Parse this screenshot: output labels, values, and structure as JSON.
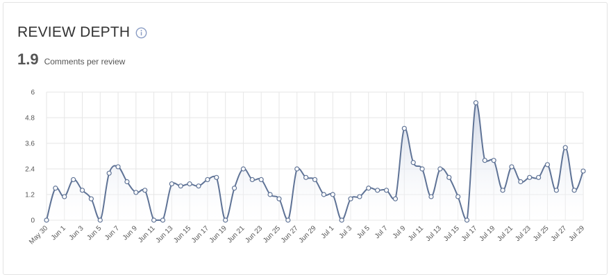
{
  "header": {
    "title": "REVIEW DEPTH",
    "info_icon": "info-circle-icon"
  },
  "metric": {
    "value": "1.9",
    "label": "Comments per review"
  },
  "colors": {
    "line": "#5f7396",
    "fill_top": "#c9d2e4",
    "fill_bottom": "#ffffff",
    "grid": "#e6e6e6",
    "info_icon": "#8a9cc4"
  },
  "chart_data": {
    "type": "area",
    "title": "",
    "xlabel": "",
    "ylabel": "",
    "ylim": [
      0,
      6
    ],
    "yticks": [
      "0",
      "1.2",
      "2.4",
      "3.6",
      "4.8",
      "6"
    ],
    "grid": true,
    "x": [
      "May 30",
      "May 31",
      "Jun 1",
      "Jun 2",
      "Jun 3",
      "Jun 4",
      "Jun 5",
      "Jun 6",
      "Jun 7",
      "Jun 8",
      "Jun 9",
      "Jun 10",
      "Jun 11",
      "Jun 12",
      "Jun 13",
      "Jun 14",
      "Jun 15",
      "Jun 16",
      "Jun 17",
      "Jun 18",
      "Jun 19",
      "Jun 20",
      "Jun 21",
      "Jun 22",
      "Jun 23",
      "Jun 24",
      "Jun 25",
      "Jun 26",
      "Jun 27",
      "Jun 28",
      "Jun 29",
      "Jun 30",
      "Jul 1",
      "Jul 2",
      "Jul 3",
      "Jul 4",
      "Jul 5",
      "Jul 6",
      "Jul 7",
      "Jul 8",
      "Jul 9",
      "Jul 10",
      "Jul 11",
      "Jul 12",
      "Jul 13",
      "Jul 14",
      "Jul 15",
      "Jul 16",
      "Jul 17",
      "Jul 18",
      "Jul 19",
      "Jul 20",
      "Jul 21",
      "Jul 22",
      "Jul 23",
      "Jul 24",
      "Jul 25",
      "Jul 26",
      "Jul 27",
      "Jul 28",
      "Jul 29"
    ],
    "x_tick_labels": [
      "May 30",
      "Jun 1",
      "Jun 3",
      "Jun 5",
      "Jun 7",
      "Jun 9",
      "Jun 11",
      "Jun 13",
      "Jun 15",
      "Jun 17",
      "Jun 19",
      "Jun 21",
      "Jun 23",
      "Jun 25",
      "Jun 27",
      "Jun 29",
      "Jul 1",
      "Jul 3",
      "Jul 5",
      "Jul 7",
      "Jul 9",
      "Jul 11",
      "Jul 13",
      "Jul 15",
      "Jul 17",
      "Jul 19",
      "Jul 21",
      "Jul 23",
      "Jul 25",
      "Jul 27",
      "Jul 29"
    ],
    "series": [
      {
        "values": [
          0,
          1.5,
          1.1,
          1.9,
          1.4,
          1.0,
          0,
          2.2,
          2.5,
          1.8,
          1.3,
          1.4,
          0,
          0,
          1.7,
          1.6,
          1.7,
          1.6,
          1.9,
          2.0,
          0,
          1.5,
          2.4,
          1.9,
          1.9,
          1.2,
          1.0,
          0,
          2.4,
          2.0,
          1.9,
          1.2,
          1.2,
          0,
          1.0,
          1.1,
          1.5,
          1.4,
          1.4,
          1.0,
          4.3,
          2.7,
          2.4,
          1.1,
          2.4,
          2.0,
          1.1,
          0,
          5.5,
          2.8,
          2.8,
          1.4,
          2.5,
          1.8,
          2.0,
          2.0,
          2.6,
          1.4,
          3.4,
          1.4,
          2.3
        ]
      }
    ]
  }
}
